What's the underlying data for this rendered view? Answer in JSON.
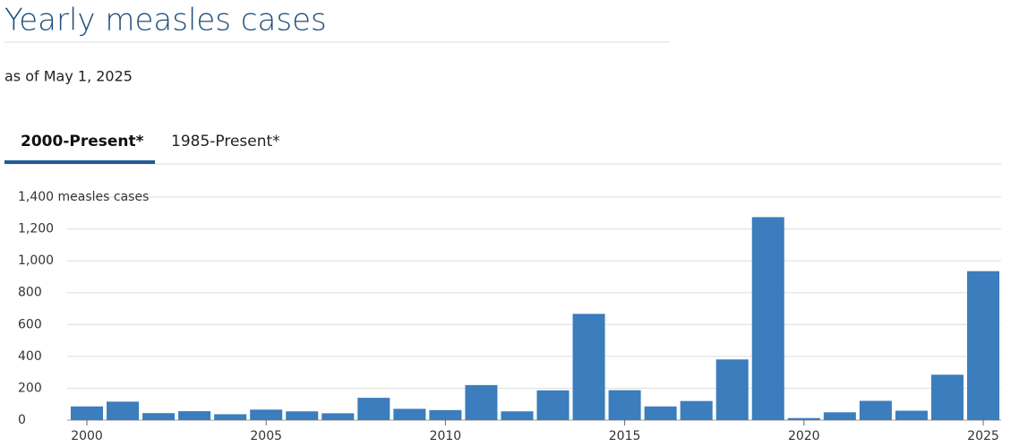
{
  "header": {
    "title": "Yearly measles cases",
    "subtitle": "as of May 1, 2025"
  },
  "tabs": [
    "2000-Present*",
    "1985-Present*"
  ],
  "chart_data": {
    "type": "bar",
    "color": "#3b7dbd",
    "x": [
      2000,
      2001,
      2002,
      2003,
      2004,
      2005,
      2006,
      2007,
      2008,
      2009,
      2010,
      2011,
      2012,
      2013,
      2014,
      2015,
      2016,
      2017,
      2018,
      2019,
      2020,
      2021,
      2022,
      2023,
      2024,
      2025
    ],
    "values": [
      86,
      116,
      44,
      56,
      37,
      66,
      55,
      43,
      140,
      71,
      63,
      220,
      55,
      187,
      667,
      188,
      86,
      120,
      381,
      1274,
      13,
      49,
      121,
      59,
      285,
      935
    ],
    "xlim": [
      1999.45,
      2025.5
    ],
    "xticks": [
      2000,
      2005,
      2010,
      2015,
      2020,
      2025
    ],
    "ylim": [
      0,
      1400
    ],
    "yticks": [
      0,
      200,
      400,
      600,
      800,
      {
        "value": 1000,
        "label": "1,000"
      },
      {
        "value": 1200,
        "label": "1,200"
      },
      {
        "value": 1400,
        "label": "1,400 measles cases"
      }
    ],
    "grid": true
  }
}
